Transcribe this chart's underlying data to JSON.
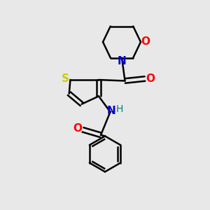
{
  "background_color": "#e8e8e8",
  "bond_color": "#000000",
  "atom_colors": {
    "S": "#cccc00",
    "N_morph": "#0000cc",
    "N_amide": "#0000cc",
    "H": "#008080",
    "O": "#ff0000",
    "C": "#000000"
  },
  "figsize": [
    3.0,
    3.0
  ],
  "dpi": 100
}
